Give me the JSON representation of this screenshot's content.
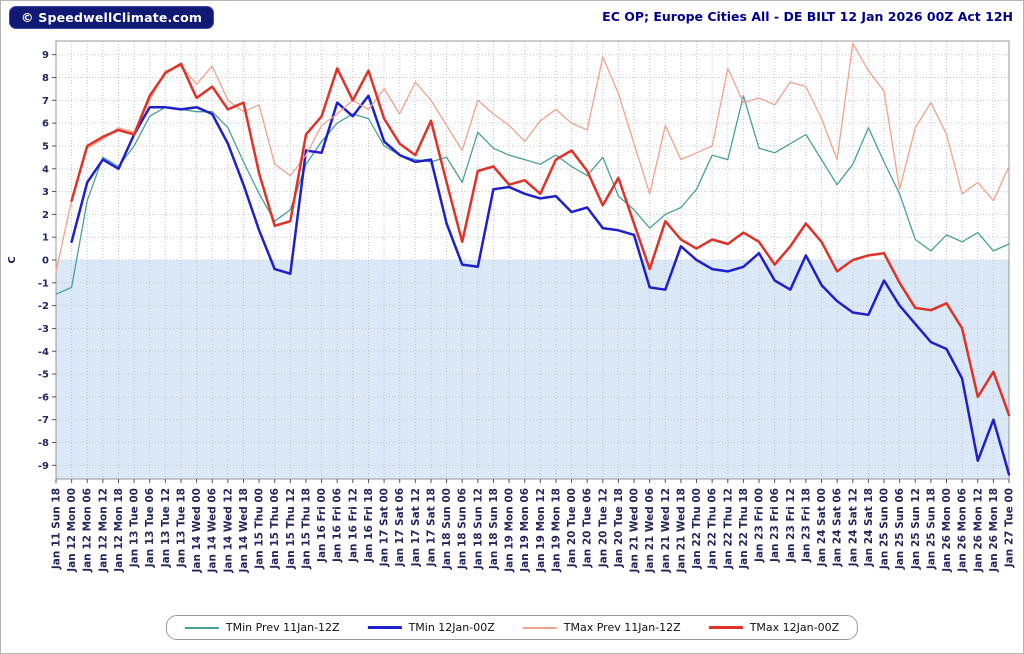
{
  "header": {
    "logo_text": "© SpeedwellClimate.com"
  },
  "chart_data": {
    "type": "line",
    "title": "EC OP; Europe Cities All - DE BILT 12 Jan 2026 00Z Act 12H",
    "xlabel": "",
    "ylabel": "C",
    "ylim": [
      -9.6,
      9.6
    ],
    "yticks": [
      9,
      8,
      7,
      6,
      5,
      4,
      3,
      2,
      1,
      0,
      -1,
      -2,
      -3,
      -4,
      -5,
      -6,
      -7,
      -8,
      -9
    ],
    "grid": "dotted",
    "grid_color": "#c6c6c6",
    "below_zero_fill": "#dbe8f7",
    "legend_position": "bottom",
    "x_labels": [
      "Jan 11 Sun 18",
      "Jan 12 Mon 00",
      "Jan 12 Mon 06",
      "Jan 12 Mon 12",
      "Jan 12 Mon 18",
      "Jan 13 Tue 00",
      "Jan 13 Tue 06",
      "Jan 13 Tue 12",
      "Jan 13 Tue 18",
      "Jan 14 Wed 00",
      "Jan 14 Wed 06",
      "Jan 14 Wed 12",
      "Jan 14 Wed 18",
      "Jan 15 Thu 00",
      "Jan 15 Thu 06",
      "Jan 15 Thu 12",
      "Jan 15 Thu 18",
      "Jan 16 Fri 00",
      "Jan 16 Fri 06",
      "Jan 16 Fri 12",
      "Jan 16 Fri 18",
      "Jan 17 Sat 00",
      "Jan 17 Sat 06",
      "Jan 17 Sat 12",
      "Jan 17 Sat 18",
      "Jan 18 Sun 00",
      "Jan 18 Sun 06",
      "Jan 18 Sun 12",
      "Jan 18 Sun 18",
      "Jan 19 Mon 00",
      "Jan 19 Mon 06",
      "Jan 19 Mon 12",
      "Jan 19 Mon 18",
      "Jan 20 Tue 00",
      "Jan 20 Tue 06",
      "Jan 20 Tue 12",
      "Jan 20 Tue 18",
      "Jan 21 Wed 00",
      "Jan 21 Wed 06",
      "Jan 21 Wed 12",
      "Jan 21 Wed 18",
      "Jan 22 Thu 00",
      "Jan 22 Thu 06",
      "Jan 22 Thu 12",
      "Jan 22 Thu 18",
      "Jan 23 Fri 00",
      "Jan 23 Fri 06",
      "Jan 23 Fri 12",
      "Jan 23 Fri 18",
      "Jan 24 Sat 00",
      "Jan 24 Sat 06",
      "Jan 24 Sat 12",
      "Jan 24 Sat 18",
      "Jan 25 Sun 00",
      "Jan 25 Sun 06",
      "Jan 25 Sun 12",
      "Jan 25 Sun 18",
      "Jan 26 Mon 00",
      "Jan 26 Mon 06",
      "Jan 26 Mon 12",
      "Jan 26 Mon 18",
      "Jan 27 Tue 00"
    ],
    "series": [
      {
        "id": "tmin-prev",
        "name": "TMin Prev 11Jan-12Z",
        "color": "#4aa099",
        "width": 1.3,
        "values": [
          -1.5,
          -1.2,
          2.6,
          4.5,
          4.1,
          5.0,
          6.3,
          6.7,
          6.6,
          6.5,
          6.5,
          5.8,
          4.3,
          2.9,
          1.7,
          2.2,
          4.2,
          5.2,
          6.0,
          6.4,
          6.2,
          5.0,
          4.6,
          4.4,
          4.3,
          4.5,
          3.4,
          5.6,
          4.9,
          4.6,
          4.4,
          4.2,
          4.6,
          4.1,
          3.7,
          4.5,
          2.8,
          2.2,
          1.4,
          2.0,
          2.3,
          3.1,
          4.6,
          4.4,
          7.2,
          4.9,
          4.7,
          5.1,
          5.5,
          4.4,
          3.3,
          4.2,
          5.8,
          4.3,
          2.9,
          0.9,
          0.4,
          1.1,
          0.8,
          1.2,
          0.4,
          0.7
        ]
      },
      {
        "id": "tmin",
        "name": "TMin 12Jan-00Z",
        "color": "#1f1fcc",
        "width": 2.5,
        "values": [
          null,
          0.8,
          3.4,
          4.4,
          4.0,
          5.5,
          6.7,
          6.7,
          6.6,
          6.7,
          6.4,
          5.1,
          3.3,
          1.3,
          -0.4,
          -0.6,
          4.8,
          4.7,
          6.9,
          6.3,
          7.2,
          5.2,
          4.6,
          4.3,
          4.4,
          1.6,
          -0.2,
          -0.3,
          3.1,
          3.2,
          2.9,
          2.7,
          2.8,
          2.1,
          2.3,
          1.4,
          1.3,
          1.1,
          -1.2,
          -1.3,
          0.6,
          0.0,
          -0.4,
          -0.5,
          -0.3,
          0.3,
          -0.9,
          -1.3,
          0.2,
          -1.1,
          -1.8,
          -2.3,
          -2.4,
          -0.9,
          -2.0,
          -2.8,
          -3.6,
          -3.9,
          -5.2,
          -8.8,
          -7.0,
          -9.4
        ]
      },
      {
        "id": "tmax-prev",
        "name": "TMax Prev 11Jan-12Z",
        "color": "#f2a28e",
        "width": 1.3,
        "values": [
          -0.5,
          2.6,
          4.9,
          5.3,
          5.8,
          5.6,
          7.0,
          8.3,
          8.5,
          7.7,
          8.5,
          7.0,
          6.5,
          6.8,
          4.2,
          3.7,
          4.6,
          5.9,
          6.4,
          7.0,
          6.6,
          7.5,
          6.4,
          7.8,
          7.0,
          5.9,
          4.8,
          7.0,
          6.4,
          5.9,
          5.2,
          6.1,
          6.6,
          6.0,
          5.7,
          8.9,
          7.3,
          5.1,
          2.9,
          5.9,
          4.4,
          4.7,
          5.0,
          8.4,
          6.9,
          7.1,
          6.8,
          7.8,
          7.6,
          6.2,
          4.4,
          9.5,
          8.3,
          7.4,
          3.1,
          5.8,
          6.9,
          5.5,
          2.9,
          3.4,
          2.6,
          4.1
        ]
      },
      {
        "id": "tmax",
        "name": "TMax 12Jan-00Z",
        "color": "#e03228",
        "width": 2.5,
        "values": [
          null,
          2.6,
          5.0,
          5.4,
          5.7,
          5.5,
          7.2,
          8.2,
          8.6,
          7.1,
          7.6,
          6.6,
          6.9,
          3.8,
          1.5,
          1.7,
          5.5,
          6.3,
          8.4,
          7.0,
          8.3,
          6.2,
          5.1,
          4.6,
          6.1,
          3.4,
          0.8,
          3.9,
          4.1,
          3.3,
          3.5,
          2.9,
          4.4,
          4.8,
          3.9,
          2.4,
          3.6,
          1.6,
          -0.4,
          1.7,
          0.9,
          0.5,
          0.9,
          0.7,
          1.2,
          0.8,
          -0.2,
          0.6,
          1.6,
          0.8,
          -0.5,
          0.0,
          0.2,
          0.3,
          -1.0,
          -2.1,
          -2.2,
          -1.9,
          -3.0,
          -6.0,
          -4.9,
          -6.8
        ]
      }
    ]
  }
}
